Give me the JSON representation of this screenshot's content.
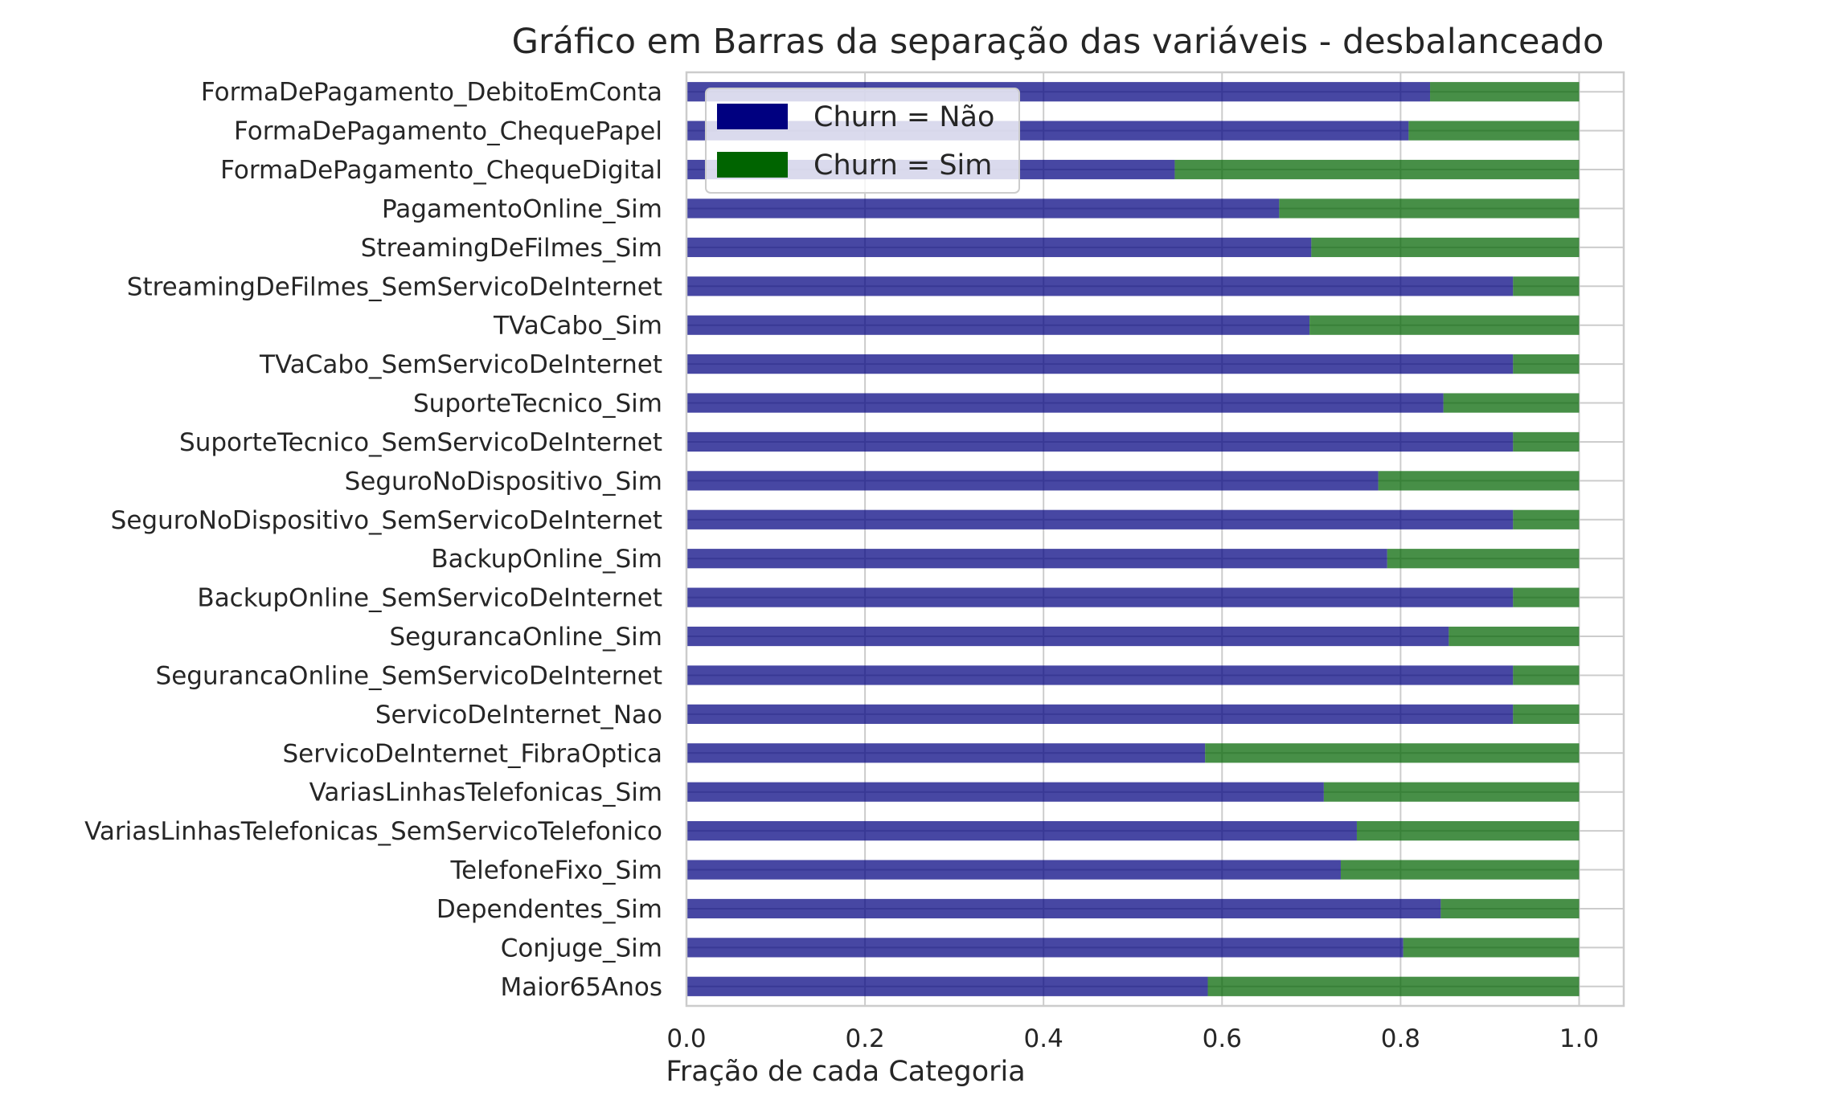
{
  "chart_data": {
    "type": "bar",
    "orientation": "horizontal",
    "stacked": true,
    "title": "Gráfico em Barras da separação das variáveis - desbalanceado",
    "xlabel": "Fração de cada Categoria",
    "ylabel": "",
    "xlim": [
      0.0,
      1.05
    ],
    "xticks": [
      0.0,
      0.2,
      0.4,
      0.6,
      0.8,
      1.0
    ],
    "xtick_labels": [
      "0.0",
      "0.2",
      "0.4",
      "0.6",
      "0.8",
      "1.0"
    ],
    "grid": true,
    "legend_position": "top-left",
    "categories": [
      "FormaDePagamento_DebitoEmConta",
      "FormaDePagamento_ChequePapel",
      "FormaDePagamento_ChequeDigital",
      "PagamentoOnline_Sim",
      "StreamingDeFilmes_Sim",
      "StreamingDeFilmes_SemServicoDeInternet",
      "TVaCabo_Sim",
      "TVaCabo_SemServicoDeInternet",
      "SuporteTecnico_Sim",
      "SuporteTecnico_SemServicoDeInternet",
      "SeguroNoDispositivo_Sim",
      "SeguroNoDispositivo_SemServicoDeInternet",
      "BackupOnline_Sim",
      "BackupOnline_SemServicoDeInternet",
      "SegurancaOnline_Sim",
      "SegurancaOnline_SemServicoDeInternet",
      "ServicoDeInternet_Nao",
      "ServicoDeInternet_FibraOptica",
      "VariasLinhasTelefonicas_Sim",
      "VariasLinhasTelefonicas_SemServicoTelefonico",
      "TelefoneFixo_Sim",
      "Dependentes_Sim",
      "Conjuge_Sim",
      "Maior65Anos"
    ],
    "series": [
      {
        "name": "Churn = Não",
        "color": "#000080",
        "values": [
          0.833,
          0.809,
          0.547,
          0.664,
          0.7,
          0.926,
          0.698,
          0.926,
          0.848,
          0.926,
          0.775,
          0.926,
          0.785,
          0.926,
          0.854,
          0.926,
          0.926,
          0.581,
          0.714,
          0.751,
          0.733,
          0.845,
          0.803,
          0.584
        ]
      },
      {
        "name": "Churn = Sim",
        "color": "#006400",
        "values": [
          0.167,
          0.191,
          0.453,
          0.336,
          0.3,
          0.074,
          0.302,
          0.074,
          0.152,
          0.074,
          0.225,
          0.074,
          0.215,
          0.074,
          0.146,
          0.074,
          0.074,
          0.419,
          0.286,
          0.249,
          0.267,
          0.155,
          0.197,
          0.416
        ]
      }
    ]
  }
}
